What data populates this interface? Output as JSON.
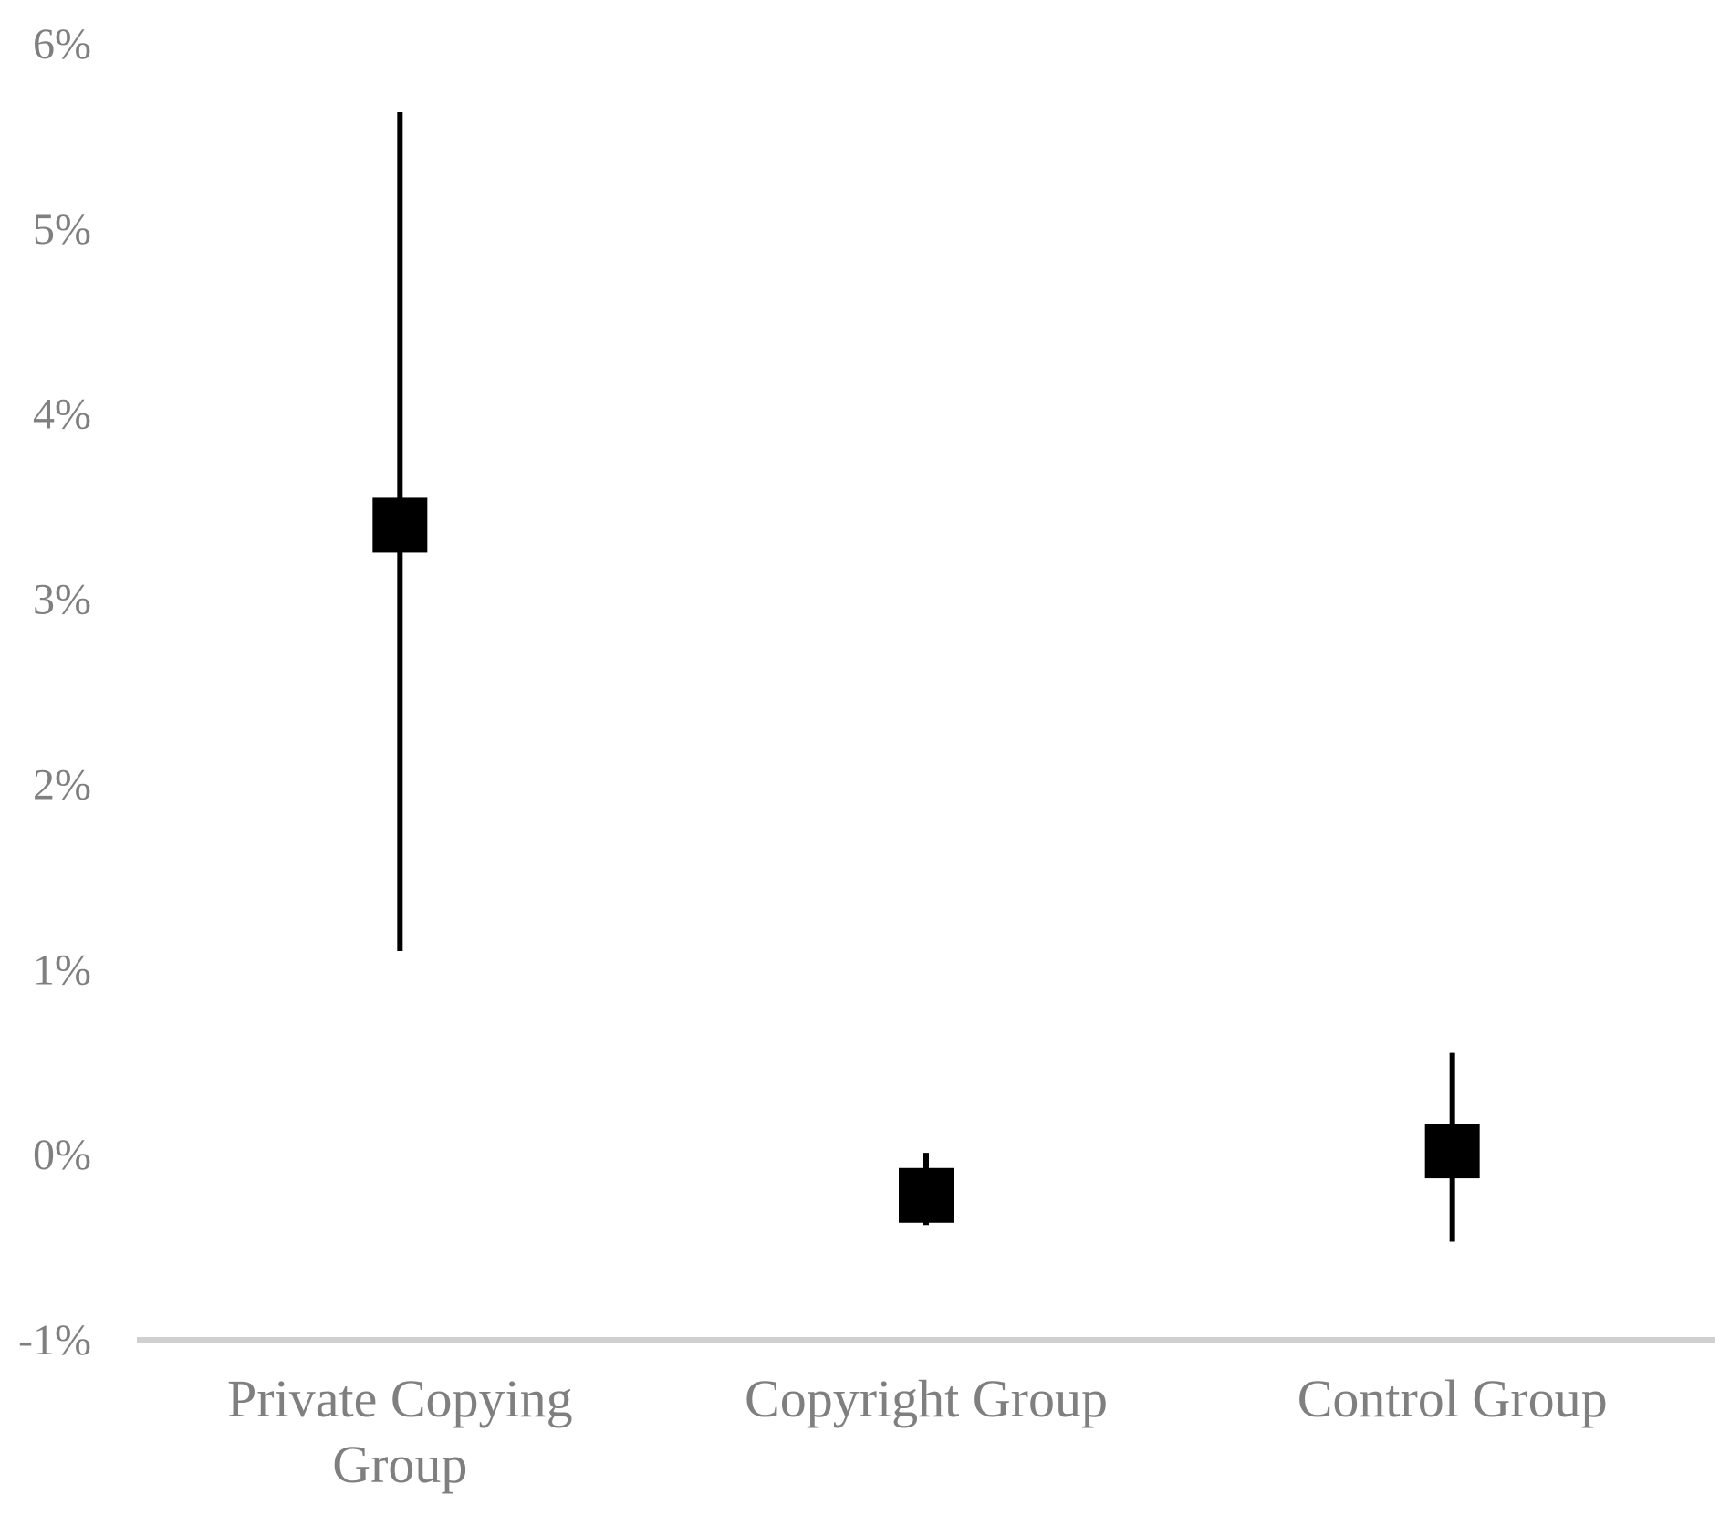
{
  "chart_data": {
    "type": "scatter",
    "title": "",
    "xlabel": "",
    "ylabel": "",
    "categories": [
      "Private Copying Group",
      "Copyright Group",
      "Control Group"
    ],
    "category_label_lines": [
      [
        "Private Copying",
        "Group"
      ],
      [
        "Copyright Group"
      ],
      [
        "Control Group"
      ]
    ],
    "y_tick_labels": [
      "-1%",
      "0%",
      "1%",
      "2%",
      "3%",
      "4%",
      "5%",
      "6%"
    ],
    "y_ticks": [
      -1,
      0,
      1,
      2,
      3,
      4,
      5,
      6
    ],
    "ylim": [
      -1,
      6
    ],
    "y_unit": "%",
    "series": [
      {
        "values": [
          3.4,
          -0.22,
          0.02
        ],
        "error_low": [
          1.1,
          -0.38,
          -0.47
        ],
        "error_high": [
          5.63,
          0.01,
          0.55
        ]
      }
    ],
    "marker": "square",
    "marker_color": "#000000",
    "errorbar_color": "#000000",
    "axis_color": "#d0d0d0",
    "label_color": "#7f7f7f",
    "grid": false,
    "legend": "none"
  }
}
